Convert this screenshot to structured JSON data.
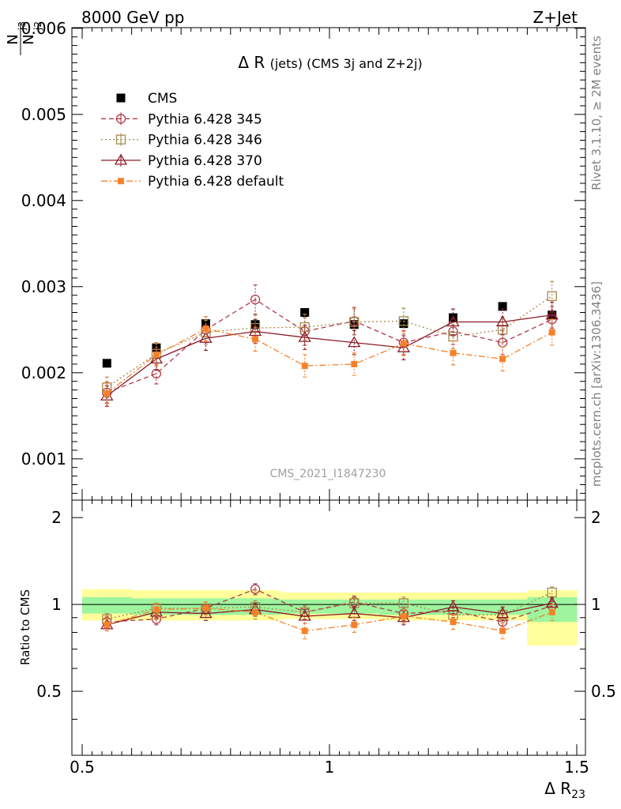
{
  "header": {
    "energy_label": "8000 GeV pp",
    "process_label": "Z+Jet"
  },
  "side_texts": {
    "rivet": "Rivet 3.1.10, ≥ 2M events",
    "mcplots": "mcplots.cern.ch [arXiv:1306.3436]"
  },
  "colors": {
    "cms": "#000000",
    "p345": "#b03a48",
    "p346": "#a78a4c",
    "p370": "#8c1c27",
    "pdef": "#f5822a",
    "band_inner": "#9ef59e",
    "band_outer": "#fefe9a"
  },
  "chart_data": [
    {
      "type": "scatter",
      "panel": "main",
      "title": "Δ R (jets) (CMS 3j and Z+2j)",
      "watermark": "CMS_2021_I1847230",
      "xlabel": "Δ R",
      "xlabel_sub": "23",
      "ylabel": "N",
      "ylabel_num_sub": "j3",
      "ylabel_den_sub": "j2",
      "xlim": [
        0.5,
        1.5
      ],
      "ylim": [
        0.0005,
        0.006
      ],
      "x_ticks": [
        "0.5",
        "1",
        "1.5"
      ],
      "y_ticks": [
        "0.001",
        "0.002",
        "0.003",
        "0.004",
        "0.005",
        "0.006"
      ],
      "x": [
        0.55,
        0.65,
        0.75,
        0.85,
        0.95,
        1.05,
        1.15,
        1.25,
        1.35,
        1.45
      ],
      "series": [
        {
          "key": "cms",
          "name": "CMS",
          "style": "data",
          "values": [
            0.00211,
            0.00229,
            0.00257,
            0.00256,
            0.0027,
            0.00256,
            0.00257,
            0.00264,
            0.00277,
            0.00267
          ]
        },
        {
          "key": "p345",
          "name": "Pythia 6.428 345",
          "style": "circle-dash",
          "values": [
            0.00177,
            0.00199,
            0.0025,
            0.00285,
            0.00248,
            0.0026,
            0.00235,
            0.00248,
            0.00235,
            0.00262
          ],
          "errors": [
            0.00012,
            0.00012,
            0.00015,
            0.00017,
            0.00016,
            0.00016,
            0.00014,
            0.00015,
            0.00014,
            0.00015
          ]
        },
        {
          "key": "p346",
          "name": "Pythia 6.428 346",
          "style": "square-dot",
          "values": [
            0.00183,
            0.00222,
            0.00247,
            0.00252,
            0.00253,
            0.00259,
            0.0026,
            0.00242,
            0.0025,
            0.00289
          ],
          "errors": [
            0.00012,
            0.00013,
            0.00014,
            0.00015,
            0.00015,
            0.00015,
            0.00015,
            0.00014,
            0.00015,
            0.00017
          ]
        },
        {
          "key": "p370",
          "name": "Pythia 6.428 370",
          "style": "triangle-solid",
          "values": [
            0.00173,
            0.00216,
            0.0024,
            0.00248,
            0.00241,
            0.00235,
            0.00229,
            0.00259,
            0.00259,
            0.00267
          ],
          "errors": [
            0.00012,
            0.00013,
            0.00014,
            0.00014,
            0.00014,
            0.00014,
            0.00014,
            0.00015,
            0.00015,
            0.00015
          ]
        },
        {
          "key": "pdef",
          "name": "Pythia 6.428 default",
          "style": "fsquare-dashdot",
          "values": [
            0.00176,
            0.00221,
            0.00251,
            0.00239,
            0.00208,
            0.0021,
            0.00234,
            0.00223,
            0.00216,
            0.00247
          ],
          "errors": [
            0.00012,
            0.00013,
            0.00014,
            0.00014,
            0.00013,
            0.00013,
            0.00014,
            0.00014,
            0.00014,
            0.00015
          ]
        }
      ],
      "legend_position": "top-left"
    },
    {
      "type": "scatter",
      "panel": "ratio",
      "ylabel": "Ratio to CMS",
      "ylim": [
        0.3,
        2.3
      ],
      "y_ticks": [
        "0.5",
        "1",
        "2"
      ],
      "band_edges": [
        0.5,
        0.6,
        0.7,
        0.8,
        0.9,
        1.0,
        1.1,
        1.2,
        1.3,
        1.4,
        1.5
      ],
      "band_inner": [
        [
          0.93,
          1.06
        ],
        [
          0.92,
          1.05
        ],
        [
          0.92,
          1.05
        ],
        [
          0.92,
          1.05
        ],
        [
          0.93,
          1.04
        ],
        [
          0.93,
          1.04
        ],
        [
          0.92,
          1.04
        ],
        [
          0.92,
          1.04
        ],
        [
          0.92,
          1.04
        ],
        [
          0.87,
          1.06
        ]
      ],
      "band_outer": [
        [
          0.88,
          1.13
        ],
        [
          0.88,
          1.12
        ],
        [
          0.88,
          1.12
        ],
        [
          0.88,
          1.12
        ],
        [
          0.89,
          1.1
        ],
        [
          0.89,
          1.1
        ],
        [
          0.88,
          1.1
        ],
        [
          0.88,
          1.1
        ],
        [
          0.88,
          1.1
        ],
        [
          0.72,
          1.12
        ]
      ],
      "x": [
        0.55,
        0.65,
        0.75,
        0.85,
        0.95,
        1.05,
        1.15,
        1.25,
        1.35,
        1.45
      ],
      "series": [
        {
          "key": "p345",
          "values": [
            0.87,
            0.89,
            0.97,
            1.13,
            0.94,
            1.02,
            0.93,
            0.95,
            0.87,
            0.99
          ],
          "errors": [
            0.04,
            0.04,
            0.05,
            0.05,
            0.05,
            0.05,
            0.05,
            0.05,
            0.05,
            0.05
          ]
        },
        {
          "key": "p346",
          "values": [
            0.89,
            0.97,
            0.97,
            0.98,
            0.94,
            1.01,
            1.01,
            0.92,
            0.92,
            1.1
          ],
          "errors": [
            0.04,
            0.04,
            0.05,
            0.05,
            0.05,
            0.05,
            0.05,
            0.05,
            0.05,
            0.05
          ]
        },
        {
          "key": "p370",
          "values": [
            0.85,
            0.94,
            0.93,
            0.96,
            0.91,
            0.93,
            0.9,
            0.98,
            0.93,
            1.01
          ],
          "errors": [
            0.04,
            0.04,
            0.05,
            0.05,
            0.05,
            0.05,
            0.05,
            0.05,
            0.05,
            0.05
          ]
        },
        {
          "key": "pdef",
          "values": [
            0.85,
            0.96,
            0.97,
            0.94,
            0.81,
            0.85,
            0.91,
            0.87,
            0.81,
            0.94
          ],
          "errors": [
            0.04,
            0.04,
            0.05,
            0.05,
            0.05,
            0.05,
            0.05,
            0.05,
            0.05,
            0.06
          ]
        }
      ]
    }
  ]
}
